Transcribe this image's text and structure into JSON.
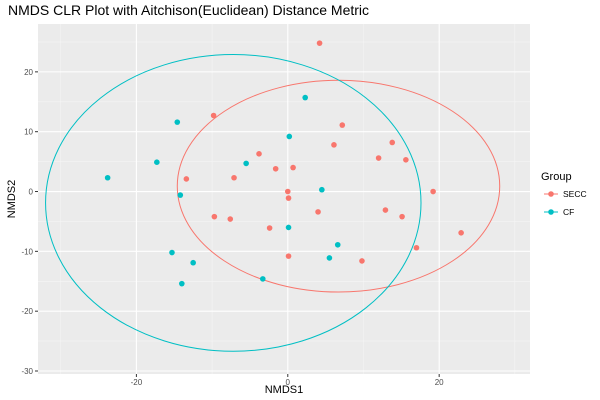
{
  "chart_data": {
    "type": "scatter",
    "title": "NMDS CLR Plot with Aitchison(Euclidean) Distance Metric",
    "xlabel": "NMDS1",
    "ylabel": "NMDS2",
    "xlim": [
      -33,
      32
    ],
    "ylim": [
      -30.5,
      28
    ],
    "x_ticks": [
      -20,
      0,
      20
    ],
    "y_ticks": [
      -30,
      -20,
      -10,
      0,
      10,
      20
    ],
    "grid": true,
    "panel_background": "#ebebeb",
    "legend": {
      "title": "Group",
      "placement": "right"
    },
    "series": [
      {
        "name": "SECC",
        "color": "#f8766d",
        "points": [
          [
            4.2,
            24.8
          ],
          [
            -9.8,
            12.7
          ],
          [
            7.2,
            11.1
          ],
          [
            13.8,
            8.2
          ],
          [
            6.1,
            7.8
          ],
          [
            12.0,
            5.6
          ],
          [
            15.6,
            5.3
          ],
          [
            -3.8,
            6.3
          ],
          [
            -1.6,
            3.8
          ],
          [
            0.7,
            4.0
          ],
          [
            -7.1,
            2.3
          ],
          [
            -13.4,
            2.1
          ],
          [
            0.0,
            0.0
          ],
          [
            0.1,
            -1.1
          ],
          [
            19.2,
            0.0
          ],
          [
            12.9,
            -3.1
          ],
          [
            15.1,
            -4.2
          ],
          [
            4.0,
            -3.4
          ],
          [
            -9.7,
            -4.2
          ],
          [
            -7.6,
            -4.6
          ],
          [
            -2.4,
            -6.1
          ],
          [
            17.0,
            -9.4
          ],
          [
            22.9,
            -6.9
          ],
          [
            0.1,
            -10.8
          ],
          [
            9.8,
            -11.6
          ]
        ],
        "ellipse": {
          "center": [
            6.7,
            0.9
          ],
          "radius_x": 21.3,
          "radius_y": 17.7
        }
      },
      {
        "name": "CF",
        "color": "#00bfc4",
        "points": [
          [
            2.3,
            15.7
          ],
          [
            -14.6,
            11.6
          ],
          [
            0.2,
            9.2
          ],
          [
            -17.3,
            4.9
          ],
          [
            -5.5,
            4.7
          ],
          [
            -23.8,
            2.3
          ],
          [
            4.5,
            0.3
          ],
          [
            -14.2,
            -0.6
          ],
          [
            0.1,
            -6.0
          ],
          [
            6.6,
            -8.9
          ],
          [
            -15.3,
            -10.2
          ],
          [
            5.5,
            -11.1
          ],
          [
            -12.5,
            -11.9
          ],
          [
            -3.3,
            -14.6
          ],
          [
            -14.0,
            -15.4
          ]
        ],
        "ellipse": {
          "center": [
            -7.2,
            -1.9
          ],
          "radius_x": 24.8,
          "radius_y": 24.8
        }
      }
    ]
  }
}
